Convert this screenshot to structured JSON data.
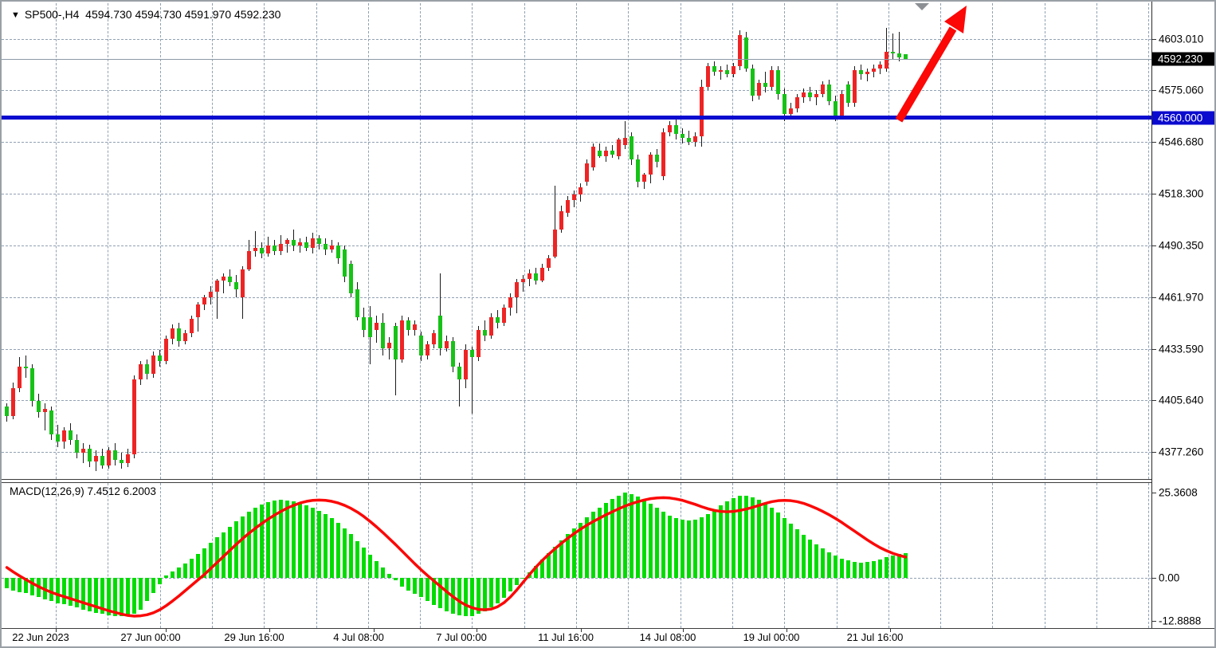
{
  "header": {
    "dropdown_glyph": "▼",
    "symbol_period": "SP500-,H4",
    "ohlc_text": "4594.730 4594.730 4591.970 4592.230"
  },
  "price_axis": {
    "labels": [
      {
        "text": "4603.010",
        "value": 4603.01
      },
      {
        "text": "4575.060",
        "value": 4575.06
      },
      {
        "text": "4546.680",
        "value": 4546.68
      },
      {
        "text": "4518.300",
        "value": 4518.3
      },
      {
        "text": "4490.350",
        "value": 4490.35
      },
      {
        "text": "4461.970",
        "value": 4461.97
      },
      {
        "text": "4433.590",
        "value": 4433.59
      },
      {
        "text": "4405.640",
        "value": 4405.64
      },
      {
        "text": "4377.260",
        "value": 4377.26
      }
    ],
    "current_price_tag": {
      "text": "4592.230",
      "value": 4592.23,
      "bg": "#000000",
      "fg": "#ffffff"
    },
    "hline_tag": {
      "text": "4560.000",
      "value": 4560.0,
      "bg": "#0b0bcf",
      "fg": "#ffffff"
    }
  },
  "time_axis": {
    "labels": [
      {
        "text": "22 Jun 2023",
        "x": 49
      },
      {
        "text": "27 Jun 00:00",
        "x": 187
      },
      {
        "text": "29 Jun 16:00",
        "x": 317
      },
      {
        "text": "4 Jul 08:00",
        "x": 448
      },
      {
        "text": "7 Jul 00:00",
        "x": 577
      },
      {
        "text": "11 Jul 16:00",
        "x": 708
      },
      {
        "text": "14 Jul 08:00",
        "x": 836
      },
      {
        "text": "19 Jul 00:00",
        "x": 966
      },
      {
        "text": "21 Jul 16:00",
        "x": 1096
      }
    ]
  },
  "indicator": {
    "label": "MACD(12,26,9) 7.4512 6.2003",
    "name": "MACD",
    "params": "12,26,9",
    "macd_value": "7.4512",
    "signal_value": "6.2003",
    "axis_labels": [
      {
        "text": "25.3608",
        "value": 25.3608
      },
      {
        "text": "0.00",
        "value": 0
      },
      {
        "text": "-12.8888",
        "value": -12.8888
      }
    ]
  },
  "annotations": {
    "support_line": {
      "price": 4560.0,
      "color": "#0b0bd0"
    },
    "trend_arrow": {
      "color": "#fb0807",
      "tail": [
        1126,
        149
      ],
      "tip": [
        1211,
        5
      ]
    },
    "shift_marker": {
      "color": "#8c9094",
      "x": 1155
    }
  },
  "colors": {
    "bull_body": "#ee2424",
    "bear_body": "#17c217",
    "wick": "#1b1b1b",
    "grid": "#91a1b3",
    "macd_hist": "#00dc00",
    "macd_signal": "#fb0807",
    "current_price_line": "#8b99a6",
    "background": "#ffffff"
  },
  "chart_data": [
    {
      "type": "candlestick",
      "symbol": "SP500-",
      "timeframe": "H4",
      "up_means": "red-body",
      "down_means": "green-body",
      "visible_price_range": [
        4365,
        4623.5
      ],
      "candles": [
        [
          4402,
          4404,
          4394,
          4397
        ],
        [
          4397,
          4415,
          4395,
          4412
        ],
        [
          4412,
          4429,
          4410,
          4424
        ],
        [
          4424,
          4430,
          4418,
          4423
        ],
        [
          4423,
          4425,
          4402,
          4405
        ],
        [
          4405,
          4409,
          4396,
          4399
        ],
        [
          4399,
          4404,
          4389,
          4401
        ],
        [
          4400,
          4402,
          4384,
          4387
        ],
        [
          4387,
          4392,
          4380,
          4383
        ],
        [
          4383,
          4391,
          4379,
          4389
        ],
        [
          4389,
          4393,
          4381,
          4384
        ],
        [
          4384,
          4387,
          4374,
          4377
        ],
        [
          4377,
          4382,
          4371,
          4379
        ],
        [
          4379,
          4381,
          4369,
          4372
        ],
        [
          4372,
          4378,
          4367,
          4375
        ],
        [
          4375,
          4379,
          4368,
          4370
        ],
        [
          4370,
          4380,
          4368,
          4378
        ],
        [
          4378,
          4382,
          4370,
          4373
        ],
        [
          4373,
          4377,
          4368,
          4371
        ],
        [
          4371,
          4379,
          4369,
          4376
        ],
        [
          4376,
          4419,
          4374,
          4417
        ],
        [
          4417,
          4427,
          4414,
          4425
        ],
        [
          4425,
          4428,
          4417,
          4420
        ],
        [
          4420,
          4432,
          4418,
          4430
        ],
        [
          4430,
          4433,
          4424,
          4427
        ],
        [
          4427,
          4441,
          4425,
          4439
        ],
        [
          4439,
          4447,
          4436,
          4445
        ],
        [
          4445,
          4448,
          4435,
          4438
        ],
        [
          4438,
          4444,
          4436,
          4442
        ],
        [
          4442,
          4452,
          4440,
          4450
        ],
        [
          4451,
          4459,
          4443,
          4458
        ],
        [
          4458,
          4463,
          4455,
          4462
        ],
        [
          4462,
          4468,
          4458,
          4465
        ],
        [
          4465,
          4472,
          4450,
          4471
        ],
        [
          4471,
          4475,
          4464,
          4473
        ],
        [
          4473,
          4477,
          4468,
          4470
        ],
        [
          4470,
          4474,
          4462,
          4466
        ],
        [
          4462,
          4479,
          4450,
          4477
        ],
        [
          4477,
          4493,
          4476,
          4487
        ],
        [
          4487,
          4498,
          4484,
          4489
        ],
        [
          4489,
          4492,
          4483,
          4486
        ],
        [
          4486,
          4495,
          4484,
          4490
        ],
        [
          4490,
          4493,
          4485,
          4487
        ],
        [
          4487,
          4496,
          4485,
          4491
        ],
        [
          4491,
          4494,
          4486,
          4493
        ],
        [
          4493,
          4499,
          4487,
          4490
        ],
        [
          4490,
          4494,
          4486,
          4492
        ],
        [
          4492,
          4495,
          4487,
          4489
        ],
        [
          4489,
          4497,
          4486,
          4494
        ],
        [
          4494,
          4496,
          4488,
          4491
        ],
        [
          4491,
          4494,
          4485,
          4488
        ],
        [
          4488,
          4493,
          4486,
          4490
        ],
        [
          4490,
          4492,
          4480,
          4483
        ],
        [
          4488,
          4490,
          4470,
          4473
        ],
        [
          4480,
          4482,
          4462,
          4464
        ],
        [
          4466,
          4470,
          4449,
          4451
        ],
        [
          4451,
          4456,
          4440,
          4444
        ],
        [
          4451,
          4457,
          4425,
          4440
        ],
        [
          4444,
          4452,
          4437,
          4448
        ],
        [
          4448,
          4453,
          4430,
          4434
        ],
        [
          4434,
          4440,
          4428,
          4437
        ],
        [
          4446,
          4448,
          4408,
          4428
        ],
        [
          4428,
          4452,
          4426,
          4449
        ],
        [
          4449,
          4451,
          4441,
          4444
        ],
        [
          4444,
          4449,
          4441,
          4447
        ],
        [
          4441,
          4443,
          4427,
          4430
        ],
        [
          4430,
          4438,
          4428,
          4436
        ],
        [
          4436,
          4444,
          4434,
          4442
        ],
        [
          4452,
          4475,
          4430,
          4434
        ],
        [
          4434,
          4441,
          4432,
          4438
        ],
        [
          4438,
          4440,
          4421,
          4424
        ],
        [
          4424,
          4426,
          4402,
          4417
        ],
        [
          4417,
          4436,
          4412,
          4433
        ],
        [
          4433,
          4435,
          4398,
          4429
        ],
        [
          4429,
          4446,
          4427,
          4444
        ],
        [
          4444,
          4449,
          4438,
          4441
        ],
        [
          4441,
          4453,
          4439,
          4451
        ],
        [
          4451,
          4455,
          4445,
          4448
        ],
        [
          4448,
          4458,
          4446,
          4456
        ],
        [
          4456,
          4464,
          4452,
          4462
        ],
        [
          4462,
          4472,
          4453,
          4470
        ],
        [
          4470,
          4474,
          4465,
          4472
        ],
        [
          4472,
          4477,
          4468,
          4475
        ],
        [
          4475,
          4478,
          4469,
          4471
        ],
        [
          4471,
          4480,
          4470,
          4478
        ],
        [
          4478,
          4485,
          4476,
          4483
        ],
        [
          4484,
          4523,
          4483,
          4499
        ],
        [
          4499,
          4512,
          4497,
          4509
        ],
        [
          4508,
          4517,
          4506,
          4515
        ],
        [
          4515,
          4520,
          4511,
          4518
        ],
        [
          4518,
          4524,
          4514,
          4522
        ],
        [
          4525,
          4537,
          4523,
          4535
        ],
        [
          4533,
          4546,
          4531,
          4544
        ],
        [
          4542,
          4546,
          4538,
          4539
        ],
        [
          4539,
          4544,
          4536,
          4542
        ],
        [
          4542,
          4545,
          4538,
          4540
        ],
        [
          4539,
          4549,
          4537,
          4548
        ],
        [
          4545,
          4558,
          4543,
          4549
        ],
        [
          4550,
          4552,
          4534,
          4537
        ],
        [
          4537,
          4540,
          4522,
          4525
        ],
        [
          4525,
          4530,
          4521,
          4529
        ],
        [
          4529,
          4541,
          4524,
          4540
        ],
        [
          4540,
          4543,
          4533,
          4536
        ],
        [
          4528,
          4554,
          4526,
          4552
        ],
        [
          4552,
          4558,
          4550,
          4556
        ],
        [
          4556,
          4559,
          4548,
          4551
        ],
        [
          4551,
          4554,
          4546,
          4549
        ],
        [
          4549,
          4553,
          4545,
          4547
        ],
        [
          4547,
          4552,
          4544,
          4550
        ],
        [
          4550,
          4581,
          4544,
          4577
        ],
        [
          4577,
          4590,
          4575,
          4588
        ],
        [
          4588,
          4591,
          4583,
          4585
        ],
        [
          4585,
          4588,
          4581,
          4586
        ],
        [
          4586,
          4589,
          4582,
          4584
        ],
        [
          4584,
          4590,
          4582,
          4588
        ],
        [
          4588,
          4608,
          4586,
          4605
        ],
        [
          4604,
          4607,
          4585,
          4587
        ],
        [
          4587,
          4589,
          4569,
          4572
        ],
        [
          4572,
          4581,
          4570,
          4579
        ],
        [
          4579,
          4585,
          4574,
          4577
        ],
        [
          4577,
          4588,
          4575,
          4586
        ],
        [
          4586,
          4588,
          4570,
          4573
        ],
        [
          4573,
          4576,
          4558,
          4562
        ],
        [
          4562,
          4568,
          4559,
          4565
        ],
        [
          4565,
          4573,
          4563,
          4571
        ],
        [
          4571,
          4576,
          4568,
          4574
        ],
        [
          4574,
          4577,
          4569,
          4571
        ],
        [
          4571,
          4575,
          4567,
          4573
        ],
        [
          4573,
          4580,
          4571,
          4578
        ],
        [
          4578,
          4581,
          4567,
          4569
        ],
        [
          4569,
          4572,
          4558,
          4561
        ],
        [
          4561,
          4575,
          4559,
          4573
        ],
        [
          4578,
          4580,
          4566,
          4568
        ],
        [
          4568,
          4588,
          4566,
          4586
        ],
        [
          4586,
          4589,
          4581,
          4584
        ],
        [
          4584,
          4587,
          4580,
          4585
        ],
        [
          4585,
          4589,
          4582,
          4587
        ],
        [
          4587,
          4591,
          4584,
          4589
        ],
        [
          4587,
          4609,
          4585,
          4596
        ],
        [
          4596,
          4606,
          4592,
          4595
        ],
        [
          4595,
          4607,
          4591,
          4593
        ],
        [
          4594.73,
          4594.73,
          4591.97,
          4592.23
        ]
      ]
    },
    {
      "type": "bar+line",
      "name": "MACD(12,26,9)",
      "ylim": [
        -12.8888,
        25.3608
      ],
      "current_values": {
        "macd": 7.4512,
        "signal": 6.2003
      },
      "histogram": [
        -3.0,
        -3.8,
        -4.2,
        -4.6,
        -5.2,
        -5.8,
        -6.3,
        -6.9,
        -7.5,
        -7.9,
        -8.4,
        -8.9,
        -9.4,
        -9.9,
        -10.4,
        -10.8,
        -11.1,
        -11.4,
        -11.5,
        -11.3,
        -10.6,
        -9.5,
        -7.0,
        -4.5,
        -2.0,
        0.8,
        1.8,
        3.0,
        4.2,
        5.6,
        7.2,
        8.8,
        10.4,
        12.0,
        13.6,
        15.2,
        16.8,
        18.2,
        19.6,
        20.8,
        21.8,
        22.5,
        23.0,
        23.2,
        23.1,
        22.8,
        22.3,
        21.6,
        20.8,
        19.9,
        19.0,
        17.8,
        16.4,
        14.8,
        13.0,
        11.0,
        9.0,
        7.0,
        5.0,
        3.0,
        1.2,
        -0.8,
        -2.6,
        -3.8,
        -4.8,
        -5.8,
        -7.0,
        -8.1,
        -9.1,
        -9.9,
        -10.6,
        -11.1,
        -11.4,
        -11.3,
        -10.8,
        -10.0,
        -8.9,
        -7.5,
        -5.9,
        -4.1,
        -2.2,
        -0.3,
        1.7,
        3.6,
        5.5,
        7.4,
        9.3,
        11.2,
        13.0,
        14.8,
        16.5,
        18.1,
        19.6,
        21.0,
        22.3,
        23.5,
        24.5,
        25.36,
        25.0,
        24.2,
        23.2,
        22.0,
        20.8,
        19.6,
        18.6,
        17.8,
        17.3,
        17.1,
        17.4,
        18.1,
        19.1,
        20.3,
        21.5,
        22.7,
        23.7,
        24.4,
        24.5,
        24.1,
        23.3,
        22.2,
        20.9,
        19.4,
        17.8,
        16.1,
        14.4,
        12.8,
        11.3,
        9.9,
        8.7,
        7.6,
        6.6,
        5.8,
        5.2,
        4.8,
        4.6,
        4.7,
        5.0,
        5.5,
        6.1,
        6.7,
        7.2,
        7.4512
      ],
      "signal": [
        3.1,
        1.8,
        0.6,
        -0.5,
        -1.6,
        -2.6,
        -3.5,
        -4.3,
        -5.0,
        -5.6,
        -6.2,
        -6.8,
        -7.4,
        -8.0,
        -8.6,
        -9.2,
        -9.8,
        -10.3,
        -10.8,
        -11.2,
        -11.4,
        -11.3,
        -11.0,
        -10.4,
        -9.5,
        -8.3,
        -6.9,
        -5.4,
        -3.8,
        -2.2,
        -0.6,
        1.0,
        2.8,
        4.6,
        6.4,
        8.2,
        10.0,
        11.7,
        13.3,
        14.8,
        16.2,
        17.5,
        18.7,
        19.8,
        20.8,
        21.6,
        22.3,
        22.8,
        23.1,
        23.2,
        23.1,
        22.8,
        22.3,
        21.6,
        20.7,
        19.6,
        18.3,
        16.8,
        15.2,
        13.5,
        11.7,
        9.9,
        8.0,
        6.1,
        4.2,
        2.4,
        0.7,
        -0.9,
        -2.5,
        -4.1,
        -5.6,
        -7.0,
        -8.1,
        -8.9,
        -9.4,
        -9.5,
        -9.3,
        -8.6,
        -7.4,
        -5.7,
        -3.6,
        -1.3,
        1.0,
        3.2,
        5.2,
        7.0,
        8.7,
        10.3,
        11.8,
        13.2,
        14.5,
        15.7,
        16.8,
        17.8,
        18.8,
        19.7,
        20.6,
        21.4,
        22.1,
        22.7,
        23.2,
        23.6,
        23.8,
        23.9,
        23.8,
        23.5,
        23.1,
        22.5,
        21.9,
        21.2,
        20.6,
        20.1,
        19.8,
        19.7,
        19.8,
        20.1,
        20.5,
        21.0,
        21.6,
        22.2,
        22.7,
        23.0,
        23.1,
        23.0,
        22.7,
        22.2,
        21.5,
        20.7,
        19.8,
        18.8,
        17.7,
        16.5,
        15.2,
        13.9,
        12.6,
        11.3,
        10.1,
        9.0,
        8.1,
        7.3,
        6.7,
        6.2003
      ]
    }
  ]
}
